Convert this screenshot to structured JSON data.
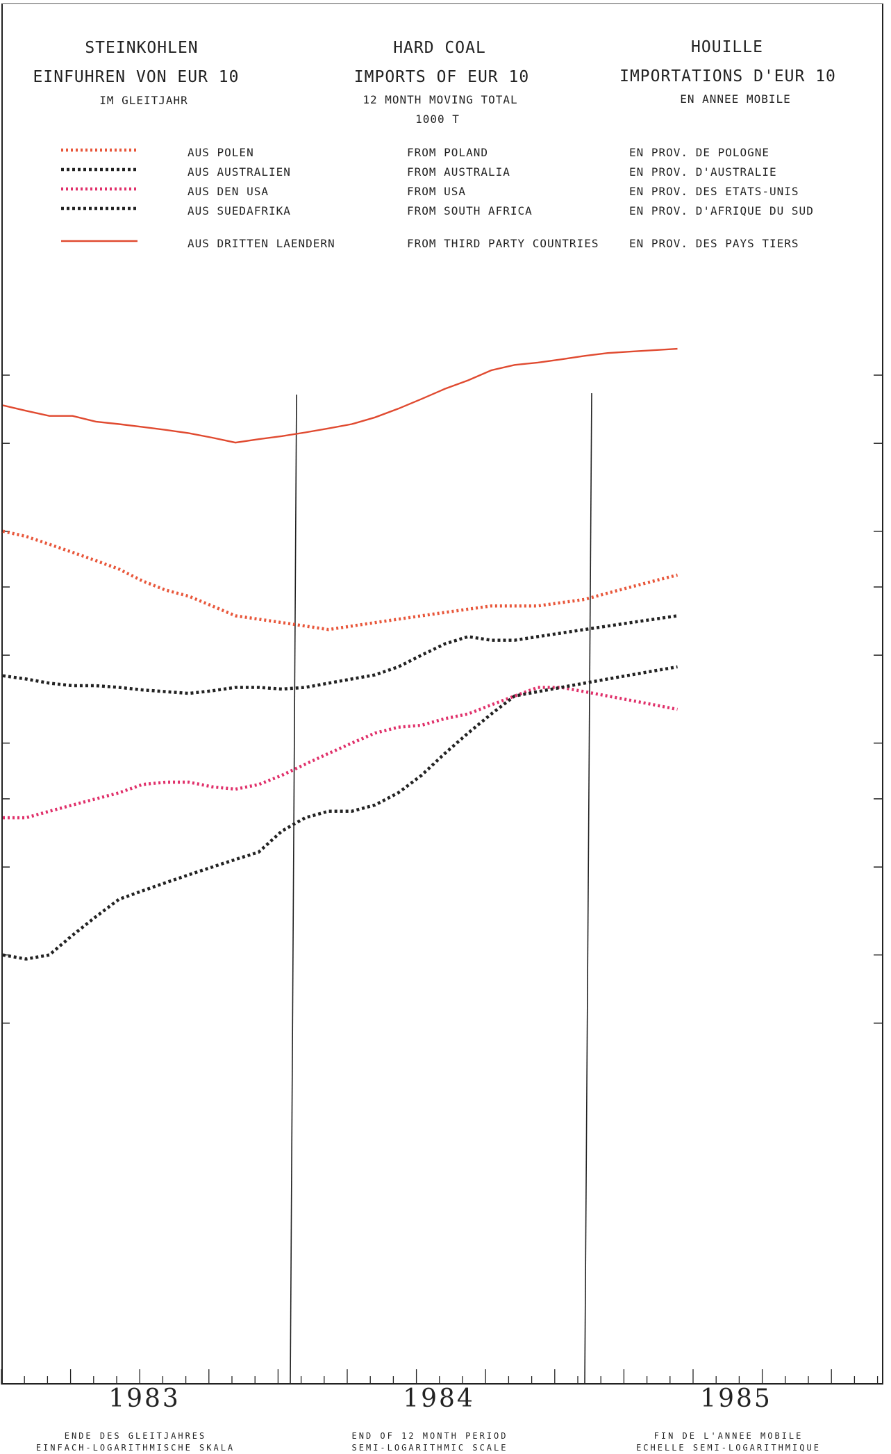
{
  "header": {
    "de": {
      "title": "STEINKOHLEN",
      "subtitle": "EINFUHREN VON EUR 10",
      "note": "IM GLEITJAHR"
    },
    "en": {
      "title": "HARD COAL",
      "subtitle": "IMPORTS OF EUR 10",
      "note": "12 MONTH MOVING TOTAL",
      "unit": "1000 T"
    },
    "fr": {
      "title": "HOUILLE",
      "subtitle": "IMPORTATIONS D'EUR 10",
      "note": "EN ANNEE MOBILE"
    }
  },
  "legend": [
    {
      "de": "AUS POLEN",
      "en": "FROM POLAND",
      "fr": "EN PROV. DE POLOGNE"
    },
    {
      "de": "AUS AUSTRALIEN",
      "en": "FROM AUSTRALIA",
      "fr": "EN PROV. D'AUSTRALIE"
    },
    {
      "de": "AUS DEN USA",
      "en": "FROM USA",
      "fr": "EN PROV. DES ETATS-UNIS"
    },
    {
      "de": "AUS SUEDAFRIKA",
      "en": "FROM SOUTH AFRICA",
      "fr": "EN PROV. D'AFRIQUE DU SUD"
    },
    {
      "de": "AUS DRITTEN LAENDERN",
      "en": "FROM THIRD PARTY COUNTRIES",
      "fr": "EN PROV. DES PAYS TIERS"
    }
  ],
  "footer": {
    "de": {
      "line1": "ENDE DES GLEITJAHRES",
      "line2": "EINFACH-LOGARITHMISCHE SKALA"
    },
    "en": {
      "line1": "END OF 12 MONTH PERIOD",
      "line2": "SEMI-LOGARITHMIC SCALE"
    },
    "fr": {
      "line1": "FIN DE L'ANNEE MOBILE",
      "line2": "ECHELLE SEMI-LOGARITHMIQUE"
    }
  },
  "colors": {
    "poland": "#e8563a",
    "australia": "#222222",
    "usa": "#e0306a",
    "south_africa": "#222222",
    "third": "#e04a30",
    "axis": "#222222"
  },
  "chart_data": {
    "type": "line",
    "y_scale": "log",
    "y_tick_labels_shown": false,
    "x_tick_labels": [
      "1983",
      "1984",
      "1985"
    ],
    "x": [
      "1982-09",
      "1982-10",
      "1982-11",
      "1982-12",
      "1983-01",
      "1983-02",
      "1983-03",
      "1983-04",
      "1983-05",
      "1983-06",
      "1983-07",
      "1983-08",
      "1983-09",
      "1983-10",
      "1983-11",
      "1983-12",
      "1984-01",
      "1984-02",
      "1984-03",
      "1984-04",
      "1984-05",
      "1984-06",
      "1984-07",
      "1984-08",
      "1984-09",
      "1984-10",
      "1984-11",
      "1984-12",
      "1985-01",
      "1985-02"
    ],
    "series": [
      {
        "name": "AUS DRITTEN LAENDERN",
        "style": "solid",
        "values": [
          0.906,
          0.89,
          0.875,
          0.875,
          0.859,
          0.852,
          0.844,
          0.836,
          0.827,
          0.815,
          0.802,
          0.811,
          0.819,
          0.829,
          0.84,
          0.852,
          0.871,
          0.896,
          0.925,
          0.956,
          0.983,
          1.016,
          1.034,
          1.042,
          1.053,
          1.065,
          1.075,
          1.08,
          1.085,
          1.09
        ]
      },
      {
        "name": "AUS POLEN",
        "style": "dotted",
        "values": [
          0.6,
          0.59,
          0.575,
          0.56,
          0.545,
          0.53,
          0.51,
          0.495,
          0.485,
          0.47,
          0.455,
          0.45,
          0.445,
          0.44,
          0.435,
          0.44,
          0.445,
          0.45,
          0.455,
          0.46,
          0.465,
          0.47,
          0.47,
          0.47,
          0.475,
          0.48,
          0.49,
          0.5,
          0.51,
          0.52
        ]
      },
      {
        "name": "AUS AUSTRALIEN",
        "style": "dotted",
        "values": [
          0.374,
          0.37,
          0.365,
          0.362,
          0.362,
          0.36,
          0.357,
          0.355,
          0.353,
          0.356,
          0.36,
          0.36,
          0.358,
          0.36,
          0.365,
          0.37,
          0.375,
          0.385,
          0.4,
          0.415,
          0.425,
          0.42,
          0.42,
          0.425,
          0.43,
          0.435,
          0.44,
          0.445,
          0.45,
          0.455
        ]
      },
      {
        "name": "AUS DEN USA",
        "style": "dotted",
        "values": [
          0.235,
          0.235,
          0.24,
          0.245,
          0.25,
          0.255,
          0.262,
          0.264,
          0.264,
          0.26,
          0.258,
          0.262,
          0.27,
          0.28,
          0.29,
          0.3,
          0.31,
          0.316,
          0.318,
          0.325,
          0.33,
          0.34,
          0.35,
          0.36,
          0.36,
          0.355,
          0.35,
          0.345,
          0.34,
          0.335
        ]
      },
      {
        "name": "AUS SUEDAFRIKA",
        "style": "dotted",
        "values": [
          0.15,
          0.148,
          0.15,
          0.16,
          0.17,
          0.18,
          0.185,
          0.19,
          0.195,
          0.2,
          0.205,
          0.21,
          0.225,
          0.235,
          0.24,
          0.24,
          0.245,
          0.255,
          0.27,
          0.29,
          0.31,
          0.33,
          0.35,
          0.355,
          0.36,
          0.365,
          0.37,
          0.375,
          0.38,
          0.385
        ]
      }
    ]
  }
}
